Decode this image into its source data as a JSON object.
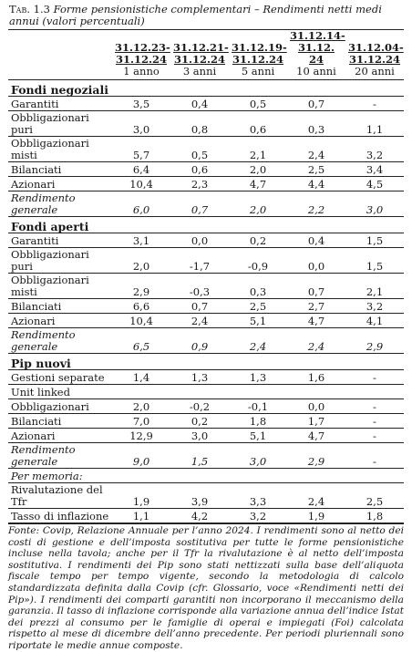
{
  "title": {
    "label": "Tab. 1.3",
    "text": "Forme pensionistiche complementari – Rendimenti netti medi annui (valori percentuali)"
  },
  "headers": {
    "periods": [
      "31.12.23-31.12.24",
      "31.12.21-31.12.24",
      "31.12.19-31.12.24",
      "31.12.14-31.12. 24",
      "31.12.04-31.12.24"
    ],
    "spans": [
      "1 anno",
      "3 anni",
      "5 anni",
      "10 anni",
      "20 anni"
    ]
  },
  "sections": [
    {
      "name": "Fondi negoziali",
      "rows": [
        {
          "label": "Garantiti",
          "values": [
            "3,5",
            "0,4",
            "0,5",
            "0,7",
            "-"
          ],
          "italic": false,
          "tall": false
        },
        {
          "label": "Obbligazionari puri",
          "values": [
            "3,0",
            "0,8",
            "0,6",
            "0,3",
            "1,1"
          ],
          "italic": false,
          "tall": true
        },
        {
          "label": "Obbligazionari misti",
          "values": [
            "5,7",
            "0,5",
            "2,1",
            "2,4",
            "3,2"
          ],
          "italic": false,
          "tall": true
        },
        {
          "label": "Bilanciati",
          "values": [
            "6,4",
            "0,6",
            "2,0",
            "2,5",
            "3,4"
          ],
          "italic": false,
          "tall": false
        },
        {
          "label": "Azionari",
          "values": [
            "10,4",
            "2,3",
            "4,7",
            "4,4",
            "4,5"
          ],
          "italic": false,
          "tall": false
        },
        {
          "label": "Rendimento generale",
          "values": [
            "6,0",
            "0,7",
            "2,0",
            "2,2",
            "3,0"
          ],
          "italic": true,
          "tall": true
        }
      ]
    },
    {
      "name": "Fondi aperti",
      "rows": [
        {
          "label": "Garantiti",
          "values": [
            "3,1",
            "0,0",
            "0,2",
            "0,4",
            "1,5"
          ],
          "italic": false,
          "tall": false
        },
        {
          "label": "Obbligazionari puri",
          "values": [
            "2,0",
            "-1,7",
            "-0,9",
            "0,0",
            "1,5"
          ],
          "italic": false,
          "tall": true
        },
        {
          "label": "Obbligazionari misti",
          "values": [
            "2,9",
            "-0,3",
            "0,3",
            "0,7",
            "2,1"
          ],
          "italic": false,
          "tall": true
        },
        {
          "label": "Bilanciati",
          "values": [
            "6,6",
            "0,7",
            "2,5",
            "2,7",
            "3,2"
          ],
          "italic": false,
          "tall": false
        },
        {
          "label": "Azionari",
          "values": [
            "10,4",
            "2,4",
            "5,1",
            "4,7",
            "4,1"
          ],
          "italic": false,
          "tall": false
        },
        {
          "label": "Rendimento generale",
          "values": [
            "6,5",
            "0,9",
            "2,4",
            "2,4",
            "2,9"
          ],
          "italic": true,
          "tall": true
        }
      ]
    },
    {
      "name": "Pip nuovi",
      "rows": [
        {
          "label": "Gestioni separate",
          "values": [
            "1,4",
            "1,3",
            "1,3",
            "1,6",
            "-"
          ],
          "italic": false,
          "tall": false
        },
        {
          "label": "Unit linked",
          "values": [
            "",
            "",
            "",
            "",
            ""
          ],
          "italic": false,
          "tall": false
        },
        {
          "label": "Obbligazionari",
          "values": [
            "2,0",
            "-0,2",
            "-0,1",
            "0,0",
            "-"
          ],
          "italic": false,
          "tall": false
        },
        {
          "label": "Bilanciati",
          "values": [
            "7,0",
            "0,2",
            "1,8",
            "1,7",
            "-"
          ],
          "italic": false,
          "tall": false
        },
        {
          "label": "Azionari",
          "values": [
            "12,9",
            "3,0",
            "5,1",
            "4,7",
            "-"
          ],
          "italic": false,
          "tall": false
        },
        {
          "label": "Rendimento generale",
          "values": [
            "9,0",
            "1,5",
            "3,0",
            "2,9",
            "-"
          ],
          "italic": true,
          "tall": true
        }
      ]
    }
  ],
  "memo": {
    "heading": "Per memoria:",
    "rows": [
      {
        "label": "Rivalutazione del Tfr",
        "values": [
          "1,9",
          "3,9",
          "3,3",
          "2,4",
          "2,5"
        ],
        "tall": true
      },
      {
        "label": "Tasso di inflazione",
        "values": [
          "1,1",
          "4,2",
          "3,2",
          "1,9",
          "1,8"
        ],
        "tall": false
      }
    ]
  },
  "note": "Fonte: Covip, Relazione Annuale per l’anno 2024. I rendimenti sono al netto dei costi di gestione e dell’imposta sostitutiva per tutte le forme pensionistiche incluse nella tavola; anche per il Tfr la rivalutazione è al netto dell’imposta sostitutiva. I rendimenti dei Pip sono stati nettizzati sulla base dell’aliquota fiscale tempo per tempo vigente, secondo la metodologia di calcolo standardizzata definita dalla Covip (cfr. Glossario, voce «Rendimenti netti dei Pip»). I rendimenti dei comparti garantiti non incorporano il meccanismo della garanzia. Il tasso di inflazione corrisponde alla variazione annua dell’indice Istat dei prezzi al consumo per le famiglie di operai e impiegati (Foi) calcolata rispetto al mese di dicembre dell’anno precedente. Per periodi pluriennali sono riportate le medie annue composte."
}
